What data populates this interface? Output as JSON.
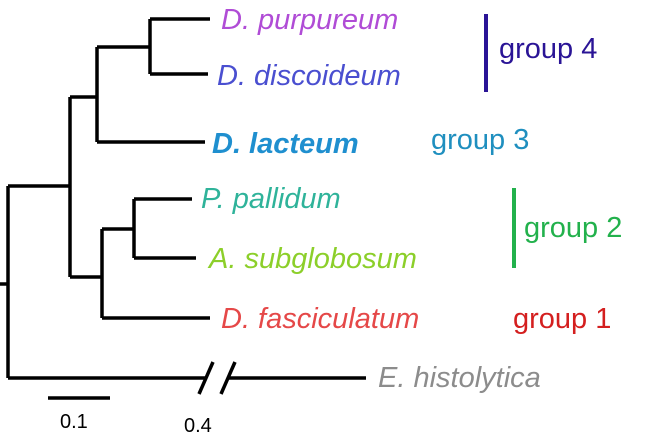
{
  "taxa": {
    "purpureum": {
      "label": "D. purpureum",
      "color": "#b04cd6"
    },
    "discoideum": {
      "label": "D. discoideum",
      "color": "#4a4fd0"
    },
    "lacteum": {
      "label": "D. lacteum",
      "color": "#1f8fcf"
    },
    "pallidum": {
      "label": "P. pallidum",
      "color": "#2fb39a"
    },
    "subglobosum": {
      "label": "A. subglobosum",
      "color": "#8ccf2a"
    },
    "fasciculatum": {
      "label": "D. fasciculatum",
      "color": "#e54848"
    },
    "histolytica": {
      "label": "E. histolytica",
      "color": "#8c8c8c"
    }
  },
  "groups": {
    "group4": {
      "label": "group 4",
      "color": "#2a1496"
    },
    "group3": {
      "label": "group 3",
      "color": "#1f8fbf"
    },
    "group2": {
      "label": "group 2",
      "color": "#22b14c"
    },
    "group1": {
      "label": "group 1",
      "color": "#d41f1f"
    }
  },
  "scale_bar": {
    "label": "0.1",
    "value": 0.1
  },
  "break_label": "0.4"
}
